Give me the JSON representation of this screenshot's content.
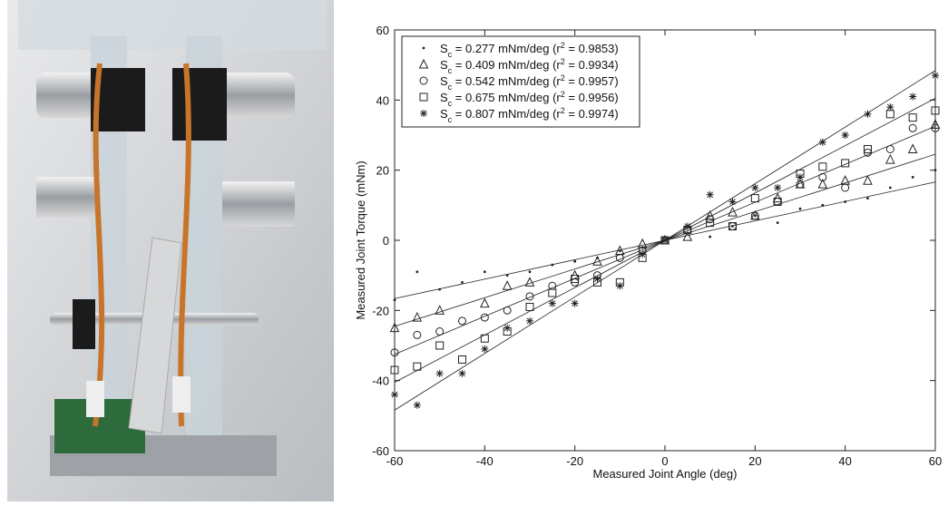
{
  "chart_data": {
    "type": "scatter",
    "xlabel": "Measured Joint Angle (deg)",
    "ylabel": "Measured Joint Torque (mNm)",
    "xlim": [
      -60,
      60
    ],
    "ylim": [
      -60,
      60
    ],
    "xticks": [
      -60,
      -40,
      -20,
      0,
      20,
      40,
      60
    ],
    "yticks": [
      -60,
      -40,
      -20,
      0,
      20,
      40,
      60
    ],
    "grid": false,
    "legend": "upper left",
    "series": [
      {
        "name": [
          "S",
          "c",
          " = 0.277 mNm/deg (r",
          "2",
          " = 0.9853)"
        ],
        "slope": 0.277,
        "r_squared": 0.9853,
        "marker": "dot",
        "color": "#222222",
        "x": [
          -60,
          -55,
          -50,
          -45,
          -40,
          -35,
          -30,
          -25,
          -20,
          -15,
          -10,
          -5,
          0,
          5,
          10,
          15,
          20,
          25,
          30,
          35,
          40,
          45,
          50,
          55,
          60
        ],
        "values": [
          -17,
          -9,
          -14,
          -12,
          -9,
          -10,
          -9,
          -7,
          -6,
          -5,
          -3,
          -2,
          0,
          2,
          1,
          4,
          7,
          5,
          9,
          10,
          11,
          12,
          15,
          18,
          20
        ]
      },
      {
        "name": [
          "S",
          "c",
          " = 0.409 mNm/deg (r",
          "2",
          " = 0.9934)"
        ],
        "slope": 0.409,
        "r_squared": 0.9934,
        "marker": "triangle",
        "color": "#222222",
        "x": [
          -60,
          -55,
          -50,
          -40,
          -35,
          -30,
          -20,
          -15,
          -10,
          -5,
          0,
          5,
          10,
          15,
          20,
          25,
          30,
          35,
          40,
          45,
          50,
          55,
          60
        ],
        "values": [
          -25,
          -22,
          -20,
          -18,
          -13,
          -12,
          -10,
          -6,
          -3,
          -1,
          0,
          1,
          7,
          8,
          7,
          12,
          16,
          16,
          17,
          17,
          23,
          26,
          33
        ]
      },
      {
        "name": [
          "S",
          "c",
          " = 0.542 mNm/deg (r",
          "2",
          " = 0.9957)"
        ],
        "slope": 0.542,
        "r_squared": 0.9957,
        "marker": "circle",
        "color": "#222222",
        "x": [
          -60,
          -55,
          -50,
          -45,
          -40,
          -35,
          -30,
          -25,
          -20,
          -15,
          -10,
          -5,
          0,
          5,
          10,
          15,
          20,
          25,
          30,
          35,
          40,
          45,
          50,
          55,
          60
        ],
        "values": [
          -32,
          -27,
          -26,
          -23,
          -22,
          -20,
          -16,
          -13,
          -12,
          -10,
          -5,
          -3,
          0,
          3,
          6,
          4,
          7,
          11,
          16,
          18,
          15,
          25,
          26,
          32,
          32
        ]
      },
      {
        "name": [
          "S",
          "c",
          " = 0.675 mNm/deg (r",
          "2",
          " = 0.9956)"
        ],
        "slope": 0.675,
        "r_squared": 0.9956,
        "marker": "square",
        "color": "#222222",
        "x": [
          -60,
          -55,
          -50,
          -45,
          -40,
          -35,
          -30,
          -25,
          -20,
          -15,
          -10,
          -5,
          0,
          5,
          10,
          15,
          20,
          25,
          30,
          35,
          40,
          45,
          50,
          55,
          60
        ],
        "values": [
          -37,
          -36,
          -30,
          -34,
          -28,
          -26,
          -19,
          -15,
          -11,
          -12,
          -12,
          -5,
          0,
          3,
          5,
          4,
          12,
          11,
          19,
          21,
          22,
          26,
          36,
          35,
          37
        ]
      },
      {
        "name": [
          "S",
          "c",
          " = 0.807 mNm/deg (r",
          "2",
          " = 0.9974)"
        ],
        "slope": 0.807,
        "r_squared": 0.9974,
        "marker": "asterisk",
        "color": "#222222",
        "x": [
          -60,
          -55,
          -50,
          -45,
          -40,
          -35,
          -30,
          -25,
          -20,
          -15,
          -10,
          -5,
          0,
          5,
          10,
          15,
          20,
          25,
          30,
          35,
          40,
          45,
          50,
          55,
          60
        ],
        "values": [
          -44,
          -47,
          -38,
          -38,
          -31,
          -25,
          -23,
          -18,
          -18,
          -11,
          -13,
          -4,
          0,
          4,
          13,
          11,
          15,
          15,
          18,
          28,
          30,
          36,
          38,
          41,
          47
        ]
      }
    ]
  }
}
